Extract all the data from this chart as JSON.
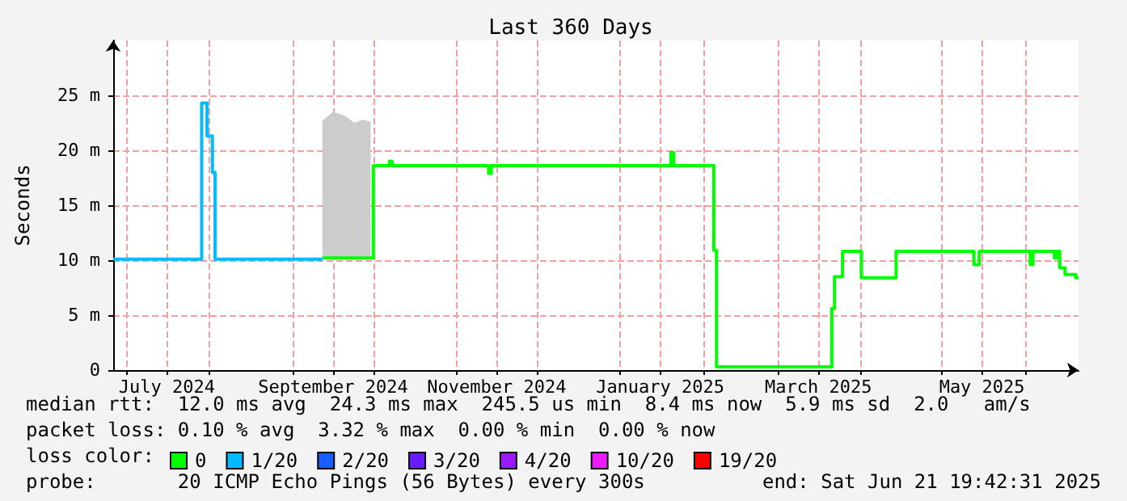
{
  "chart_data": {
    "type": "step",
    "title": "Last 360 Days",
    "ylabel": "Seconds",
    "xlim": [
      "2024-06-26",
      "2025-06-21"
    ],
    "xticks": [
      {
        "value": "2024-07-01",
        "label": null
      },
      {
        "value": "2024-07-16",
        "label": "July 2024"
      },
      {
        "value": "2024-08-01",
        "label": null
      },
      {
        "value": "2024-09-01",
        "label": null
      },
      {
        "value": "2024-09-16",
        "label": "September 2024"
      },
      {
        "value": "2024-10-01",
        "label": null
      },
      {
        "value": "2024-11-01",
        "label": null
      },
      {
        "value": "2024-11-16",
        "label": "November 2024"
      },
      {
        "value": "2024-12-01",
        "label": null
      },
      {
        "value": "2025-01-01",
        "label": null
      },
      {
        "value": "2025-01-16",
        "label": "January 2025"
      },
      {
        "value": "2025-02-01",
        "label": null
      },
      {
        "value": "2025-03-01",
        "label": null
      },
      {
        "value": "2025-03-16",
        "label": "March 2025"
      },
      {
        "value": "2025-04-01",
        "label": null
      },
      {
        "value": "2025-05-01",
        "label": null
      },
      {
        "value": "2025-05-16",
        "label": "May 2025"
      },
      {
        "value": "2025-06-01",
        "label": null
      }
    ],
    "ylim": [
      0,
      30
    ],
    "yticks": [
      0,
      {
        "value": 5,
        "label": "5 m"
      },
      {
        "value": 10,
        "label": "10 m"
      },
      {
        "value": 15,
        "label": "15 m"
      },
      {
        "value": 20,
        "label": "20 m"
      },
      {
        "value": 25,
        "label": "25 m"
      }
    ],
    "grid": true,
    "legend": "bottom left",
    "legend_title": "loss color:",
    "series": [
      {
        "name": "0",
        "color": "#00ff00",
        "x": [
          "2024-09-12",
          "2024-09-16",
          "2024-09-20",
          "2024-09-24",
          "2024-09-27",
          "2024-09-30",
          "2024-10-01",
          "2024-10-07",
          "2024-10-08",
          "2024-11-13",
          "2024-11-14",
          "2025-01-20",
          "2025-01-21",
          "2025-02-05",
          "2025-02-06",
          "2025-03-21",
          "2025-03-22",
          "2025-03-25",
          "2025-04-01",
          "2025-04-02",
          "2025-04-14",
          "2025-05-13",
          "2025-05-15",
          "2025-06-03",
          "2025-06-04",
          "2025-06-12",
          "2025-06-13",
          "2025-06-14",
          "2025-06-16",
          "2025-06-20",
          "2025-06-21"
        ],
        "values": [
          10.2,
          10.2,
          10.2,
          10.2,
          10.2,
          10.2,
          18.6,
          19.0,
          18.6,
          17.9,
          18.6,
          19.8,
          18.6,
          10.9,
          0.3,
          5.6,
          8.5,
          10.8,
          8.4,
          8.4,
          10.8,
          9.6,
          10.8,
          9.6,
          10.8,
          10.2,
          10.8,
          9.3,
          8.7,
          8.4,
          8.4
        ],
        "lower": [
          10.2,
          10.2,
          10.2,
          10.2,
          10.2,
          10.2,
          null,
          null,
          null,
          null,
          null,
          null,
          null,
          null,
          null,
          null,
          null,
          null,
          null,
          null,
          null,
          null,
          null,
          null,
          null,
          null,
          null,
          null,
          null,
          null,
          null
        ],
        "upper": [
          22.7,
          23.5,
          23.2,
          22.5,
          22.8,
          22.6,
          null,
          null,
          null,
          null,
          null,
          null,
          null,
          null,
          null,
          null,
          null,
          null,
          null,
          null,
          null,
          null,
          null,
          null,
          null,
          null,
          null,
          null,
          null,
          null,
          null
        ]
      },
      {
        "name": "1/20",
        "color": "#00bbff",
        "x": [
          "2024-06-26",
          "2024-07-29",
          "2024-07-31",
          "2024-08-02",
          "2024-08-03",
          "2024-09-12"
        ],
        "values": [
          10.1,
          24.3,
          21.3,
          18.0,
          10.1,
          10.1
        ]
      },
      {
        "name": "2/20",
        "color": "#1a5cff"
      },
      {
        "name": "3/20",
        "color": "#6a1aff"
      },
      {
        "name": "4/20",
        "color": "#9a1aff"
      },
      {
        "name": "10/20",
        "color": "#ee1aff"
      },
      {
        "name": "19/20",
        "color": "#ff0000"
      }
    ],
    "annotations": [
      "median rtt:  12.0 ms avg  24.3 ms max  245.5 us min  8.4 ms now  5.9 ms sd  2.0   am/s",
      "packet loss: 0.10 % avg  3.32 % max  0.00 % min  0.00 % now",
      "probe:       20 ICMP Echo Pings (56 Bytes) every 300s",
      "end: Sat Jun 21 19:42:31 2025"
    ]
  }
}
